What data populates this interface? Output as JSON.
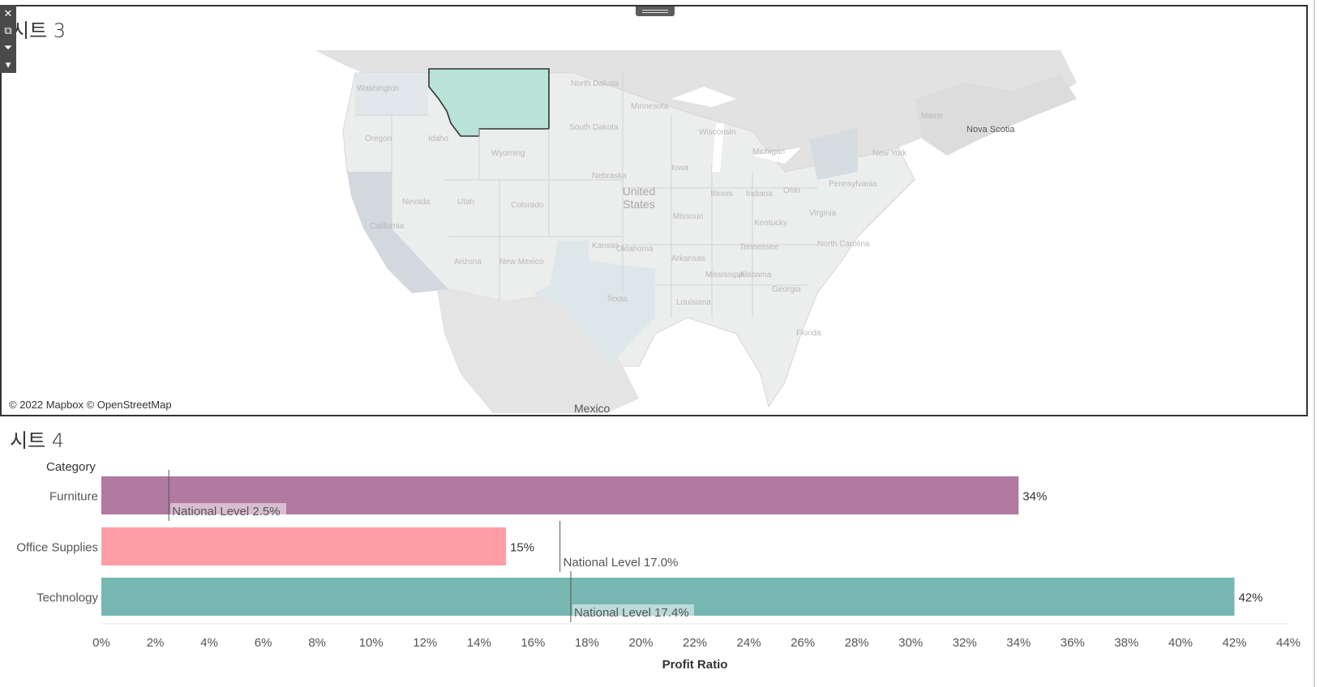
{
  "toolbar": {
    "close_icon": "close-icon",
    "popout_icon": "popout-icon",
    "filter_icon": "filter-icon",
    "more_icon": "dropdown-icon"
  },
  "sheet3": {
    "title": "시트 3",
    "credit": "© 2022 Mapbox © OpenStreetMap",
    "country_labels": [
      "Nova Scotia",
      "Mexico"
    ],
    "big_label": "United States",
    "highlight_state": "Montana",
    "colors": {
      "highlight": "#b9e3d8",
      "land": "#eceded",
      "california": "#d2d8dd"
    },
    "state_labels": [
      "Washington",
      "Oregon",
      "Idaho",
      "Nevada",
      "California",
      "Utah",
      "Arizona",
      "Colorado",
      "New Mexico",
      "Wyoming",
      "North Dakota",
      "South Dakota",
      "Nebraska",
      "Kansas",
      "Oklahoma",
      "Texas",
      "Minnesota",
      "Iowa",
      "Missouri",
      "Arkansas",
      "Louisiana",
      "Wisconsin",
      "Illinois",
      "Michigan",
      "Indiana",
      "Ohio",
      "Kentucky",
      "Tennessee",
      "Mississippi",
      "Alabama",
      "Georgia",
      "Florida",
      "North Carolina",
      "Virginia",
      "Pennsylvania",
      "New York",
      "Maine"
    ]
  },
  "sheet4": {
    "title": "시트 4",
    "category_header": "Category",
    "chart_data": {
      "type": "bar",
      "orientation": "horizontal",
      "categories": [
        "Furniture",
        "Office Supplies",
        "Technology"
      ],
      "values": [
        34,
        15,
        42
      ],
      "value_labels": [
        "34%",
        "15%",
        "42%"
      ],
      "reference_lines": [
        {
          "category": "Furniture",
          "value": 2.5,
          "label": "National Level 2.5%"
        },
        {
          "category": "Office Supplies",
          "value": 17.0,
          "label": "National Level 17.0%"
        },
        {
          "category": "Technology",
          "value": 17.4,
          "label": "National Level 17.4%"
        }
      ],
      "colors": [
        "#b07aa1",
        "#ff9da7",
        "#76b7b2"
      ],
      "xlabel": "Profit Ratio",
      "ylabel": "Category",
      "xlim": [
        0,
        44
      ],
      "x_ticks": [
        "0%",
        "2%",
        "4%",
        "6%",
        "8%",
        "10%",
        "12%",
        "14%",
        "16%",
        "18%",
        "20%",
        "22%",
        "24%",
        "26%",
        "28%",
        "30%",
        "32%",
        "34%",
        "36%",
        "38%",
        "40%",
        "42%",
        "44%"
      ]
    }
  }
}
